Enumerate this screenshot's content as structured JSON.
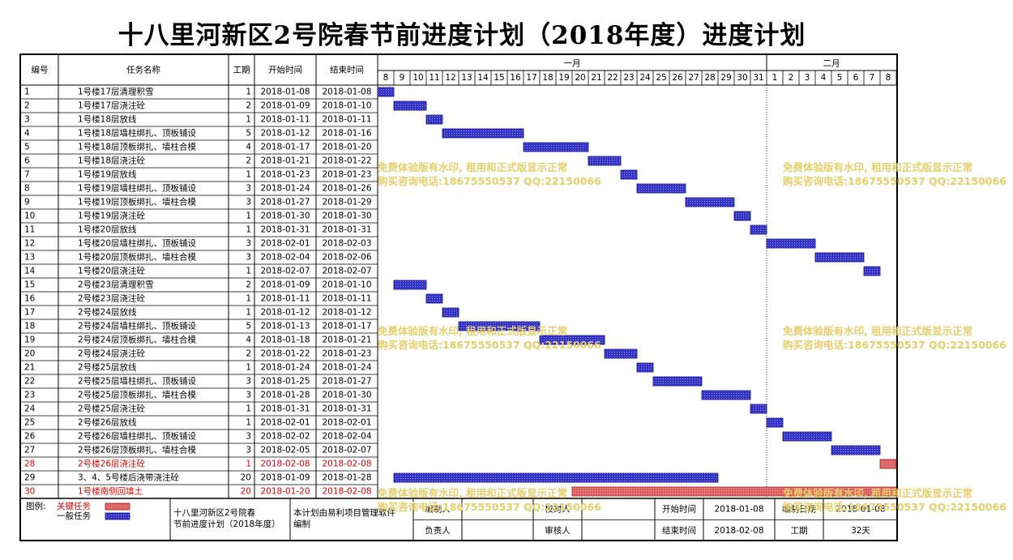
{
  "title": "十八里河新区2号院春节前进度计划（2018年度）进度计划",
  "columns": {
    "id": "编号",
    "name": "任务名称",
    "duration": "工期",
    "start": "开始时间",
    "end": "结束时间"
  },
  "months": [
    {
      "label": "一月",
      "days": [
        "8",
        "9",
        "10",
        "11",
        "12",
        "13",
        "14",
        "15",
        "16",
        "17",
        "18",
        "19",
        "20",
        "21",
        "22",
        "23",
        "24",
        "25",
        "26",
        "27",
        "28",
        "29",
        "30",
        "31"
      ]
    },
    {
      "label": "二月",
      "days": [
        "1",
        "2",
        "3",
        "4",
        "5",
        "6",
        "7",
        "8"
      ]
    }
  ],
  "chart_data": {
    "type": "gantt",
    "x_range": [
      "2018-01-08",
      "2018-02-08"
    ],
    "colors": {
      "normal": "#3333cc",
      "critical": "#e06060",
      "critical_text": "#e00000"
    },
    "tasks": [
      {
        "id": "1",
        "name": "1号楼17层清理积雪",
        "duration": "1",
        "start": "2018-01-08",
        "end": "2018-01-08",
        "critical": false
      },
      {
        "id": "2",
        "name": "1号楼17层浇注砼",
        "duration": "2",
        "start": "2018-01-09",
        "end": "2018-01-10",
        "critical": false
      },
      {
        "id": "3",
        "name": "1号楼18层放线",
        "duration": "1",
        "start": "2018-01-11",
        "end": "2018-01-11",
        "critical": false
      },
      {
        "id": "4",
        "name": "1号楼18层墙柱绑扎、顶板铺设",
        "duration": "5",
        "start": "2018-01-12",
        "end": "2018-01-16",
        "critical": false
      },
      {
        "id": "5",
        "name": "1号楼18层顶板绑扎、墙柱合模",
        "duration": "4",
        "start": "2018-01-17",
        "end": "2018-01-20",
        "critical": false
      },
      {
        "id": "6",
        "name": "1号楼18层浇注砼",
        "duration": "2",
        "start": "2018-01-21",
        "end": "2018-01-22",
        "critical": false
      },
      {
        "id": "7",
        "name": "1号楼19层放线",
        "duration": "1",
        "start": "2018-01-23",
        "end": "2018-01-23",
        "critical": false
      },
      {
        "id": "8",
        "name": "1号楼19层墙柱绑扎、顶板铺设",
        "duration": "3",
        "start": "2018-01-24",
        "end": "2018-01-26",
        "critical": false
      },
      {
        "id": "9",
        "name": "1号楼19层顶板绑扎、墙柱合模",
        "duration": "3",
        "start": "2018-01-27",
        "end": "2018-01-29",
        "critical": false
      },
      {
        "id": "10",
        "name": "1号楼19层浇注砼",
        "duration": "1",
        "start": "2018-01-30",
        "end": "2018-01-30",
        "critical": false
      },
      {
        "id": "11",
        "name": "1号楼20层放线",
        "duration": "1",
        "start": "2018-01-31",
        "end": "2018-01-31",
        "critical": false
      },
      {
        "id": "12",
        "name": "1号楼20层墙柱绑扎、顶板铺设",
        "duration": "3",
        "start": "2018-02-01",
        "end": "2018-02-03",
        "critical": false
      },
      {
        "id": "13",
        "name": "1号楼20层顶板绑扎、墙柱合模",
        "duration": "3",
        "start": "2018-02-04",
        "end": "2018-02-06",
        "critical": false
      },
      {
        "id": "14",
        "name": "1号楼20层浇注砼",
        "duration": "1",
        "start": "2018-02-07",
        "end": "2018-02-07",
        "critical": false
      },
      {
        "id": "15",
        "name": "2号楼23层清理积雪",
        "duration": "2",
        "start": "2018-01-09",
        "end": "2018-01-10",
        "critical": false
      },
      {
        "id": "16",
        "name": "2号楼23层浇注砼",
        "duration": "1",
        "start": "2018-01-11",
        "end": "2018-01-11",
        "critical": false
      },
      {
        "id": "17",
        "name": "2号楼24层放线",
        "duration": "1",
        "start": "2018-01-12",
        "end": "2018-01-12",
        "critical": false
      },
      {
        "id": "18",
        "name": "2号楼24层墙柱绑扎、顶板铺设",
        "duration": "5",
        "start": "2018-01-13",
        "end": "2018-01-17",
        "critical": false
      },
      {
        "id": "19",
        "name": "2号楼24层顶板绑扎、墙柱合模",
        "duration": "4",
        "start": "2018-01-18",
        "end": "2018-01-21",
        "critical": false
      },
      {
        "id": "20",
        "name": "2号楼24层浇注砼",
        "duration": "2",
        "start": "2018-01-22",
        "end": "2018-01-23",
        "critical": false
      },
      {
        "id": "21",
        "name": "2号楼25层放线",
        "duration": "1",
        "start": "2018-01-24",
        "end": "2018-01-24",
        "critical": false
      },
      {
        "id": "22",
        "name": "2号楼25层墙柱绑扎、顶板铺设",
        "duration": "3",
        "start": "2018-01-25",
        "end": "2018-01-27",
        "critical": false
      },
      {
        "id": "23",
        "name": "2号楼25层顶板绑扎、墙柱合模",
        "duration": "3",
        "start": "2018-01-28",
        "end": "2018-01-30",
        "critical": false
      },
      {
        "id": "24",
        "name": "2号楼25层浇注砼",
        "duration": "1",
        "start": "2018-01-31",
        "end": "2018-01-31",
        "critical": false
      },
      {
        "id": "25",
        "name": "2号楼26层放线",
        "duration": "1",
        "start": "2018-02-01",
        "end": "2018-02-01",
        "critical": false
      },
      {
        "id": "26",
        "name": "2号楼26层墙柱绑扎、顶板铺设",
        "duration": "3",
        "start": "2018-02-02",
        "end": "2018-02-04",
        "critical": false
      },
      {
        "id": "27",
        "name": "2号楼26层顶板绑扎、墙柱合模",
        "duration": "3",
        "start": "2018-02-05",
        "end": "2018-02-07",
        "critical": false
      },
      {
        "id": "28",
        "name": "2号楼26层浇注砼",
        "duration": "1",
        "start": "2018-02-08",
        "end": "2018-02-08",
        "critical": true
      },
      {
        "id": "29",
        "name": "3、4、5号楼后浇带浇注砼",
        "duration": "20",
        "start": "2018-01-09",
        "end": "2018-01-28",
        "critical": false
      },
      {
        "id": "30",
        "name": "1号楼南侧回填土",
        "duration": "20",
        "start": "2018-01-20",
        "end": "2018-02-08",
        "critical": true
      }
    ]
  },
  "footer": {
    "legend_label": "图例:",
    "legend_critical": "关键任务",
    "legend_normal": "一般任务",
    "project_name": "十八里河新区2号院春节前进度计划（2018年度）",
    "software_note": "本计划由易利项目管理软件编制",
    "editor_label": "编制人",
    "reviewer_label": "校对人",
    "responsible_label": "负责人",
    "auditor_label": "审核人",
    "start_label": "开始时间",
    "start_value": "2018-01-08",
    "end_label": "结束时间",
    "end_value": "2018-02-08",
    "date_label": "编制日期",
    "date_value": "2018-01-08",
    "duration_label": "工期",
    "duration_value": "32天"
  },
  "watermark": {
    "line1": "免费体验版有水印, 租用和正式版显示正常",
    "line2": "购买咨询电话:18675550537 QQ:22150066"
  }
}
